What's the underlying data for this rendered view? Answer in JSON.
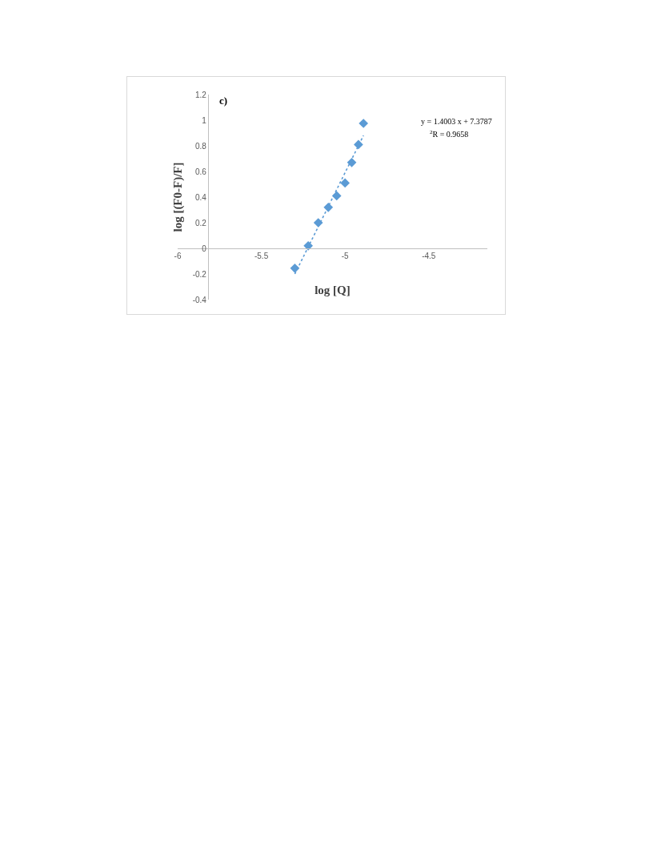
{
  "chart_data": {
    "type": "scatter",
    "xlabel": "log [Q]",
    "ylabel": "log [(F0-F)/F]",
    "annotations": [
      "c)",
      "y = 1.4003 x + 7.3787",
      "$^{2}$R = 0.9658"
    ],
    "series": [
      {
        "color": "#5b9bd5",
        "marker": "diamond",
        "x": [
          -5.3,
          -5.22,
          -5.16,
          -5.1,
          -5.05,
          -5.0,
          -4.96,
          -4.92,
          -4.89
        ],
        "values": [
          -0.155,
          0.02,
          0.2,
          0.32,
          0.41,
          0.51,
          0.67,
          0.81,
          0.975
        ]
      },
      {
        "type": "line",
        "color": "#5b9bd5",
        "line_style": "dotted",
        "marker": "none",
        "x": [
          -5.3,
          -4.89
        ],
        "values": [
          -0.2,
          0.88
        ]
      }
    ],
    "xlim": [
      -6,
      -4.15
    ],
    "xticks": [
      -6,
      -5.5,
      -5,
      -4.5
    ],
    "ylim": [
      -0.4,
      1.2
    ],
    "yticks": [
      -0.4,
      -0.2,
      0,
      0.2,
      0.4,
      0.6,
      0.8,
      1,
      1.2
    ],
    "grid": false
  }
}
